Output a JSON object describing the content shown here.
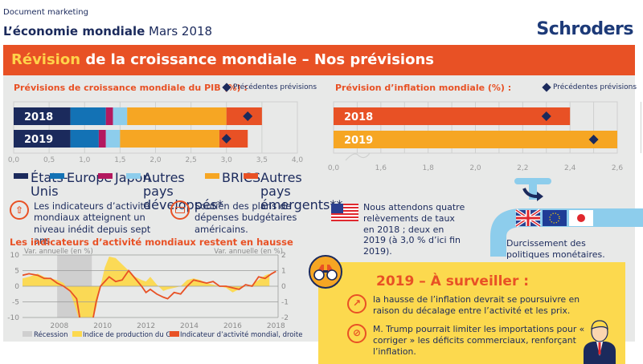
{
  "header": {
    "doc_label": "Document marketing",
    "title_bold": "L’économie mondiale",
    "title_rest": " Mars 2018",
    "logo": "Schroders"
  },
  "banner": {
    "highlight": "Révision",
    "rest": " de la croissance mondiale – Nos prévisions"
  },
  "colors": {
    "orange": "#e85125",
    "navy": "#1b2a5c",
    "yellow": "#fcd94e",
    "gold": "#f6a623",
    "grey_bg": "#e8e9e8"
  },
  "chart_data": [
    {
      "type": "bar",
      "orientation": "horizontal-stacked",
      "title": "Prévisions de croissance mondiale du PIB (%) :",
      "categories": [
        "2018",
        "2019"
      ],
      "series": [
        {
          "name": "États-Unis",
          "color": "#1b2a5c",
          "values": [
            0.8,
            0.8
          ]
        },
        {
          "name": "Europe",
          "color": "#1372b5",
          "values": [
            0.5,
            0.4
          ]
        },
        {
          "name": "Japon",
          "color": "#b3195f",
          "values": [
            0.1,
            0.1
          ]
        },
        {
          "name": "Autres pays développés*",
          "color": "#8dcdec",
          "values": [
            0.2,
            0.2
          ]
        },
        {
          "name": "BRICS",
          "color": "#f6a623",
          "values": [
            1.4,
            1.4
          ]
        },
        {
          "name": "Autres pays émergents**",
          "color": "#e85125",
          "values": [
            0.5,
            0.4
          ]
        }
      ],
      "previous_forecast": {
        "name": "Précédentes prévisions",
        "values": [
          3.3,
          3.0
        ]
      },
      "xlim": [
        0,
        4.0
      ],
      "xticks": [
        "0,0",
        "0,5",
        "1,0",
        "1,5",
        "2,0",
        "2,5",
        "3,0",
        "3,5",
        "4,0"
      ],
      "grid": true,
      "legend": "bottom"
    },
    {
      "type": "bar",
      "orientation": "horizontal",
      "title": "Prévision d’inflation mondiale (%) :",
      "categories": [
        "2018",
        "2019"
      ],
      "values": [
        2.4,
        2.6
      ],
      "colors": [
        "#e85125",
        "#f6a623"
      ],
      "previous_forecast": {
        "name": "Précédentes prévisions",
        "values": [
          2.3,
          2.5
        ]
      },
      "xlim": [
        1.4,
        2.6
      ],
      "axis_break": true,
      "xticks": [
        "0,0",
        "1,6",
        "1,8",
        "2,0",
        "2,2",
        "2,4",
        "2,6"
      ],
      "grid": true
    },
    {
      "type": "line",
      "title": "Les indicateurs d’activité mondiaux restent en hausse",
      "ylabel_left": "Var. annuelle (en %)",
      "ylabel_right": "Var. annuelle (en %)",
      "ylim_left": [
        -10,
        10
      ],
      "ylim_right": [
        -2,
        2
      ],
      "yticks_left": [
        "10",
        "5",
        "0",
        "-5",
        "-10"
      ],
      "yticks_right": [
        "2",
        "1",
        "0",
        "-1",
        "-2"
      ],
      "xlim": [
        2006.3,
        2018.1
      ],
      "xticks": [
        "2008",
        "2010",
        "2012",
        "2014",
        "2016",
        "2018"
      ],
      "recession": [
        2007.9,
        2009.5
      ],
      "series": [
        {
          "name": "Indice de production du G7",
          "type": "area",
          "axis": "left",
          "color": "#fcd94e",
          "x": [
            2006.3,
            2006.6,
            2007.0,
            2007.3,
            2007.6,
            2007.9,
            2008.2,
            2008.5,
            2008.8,
            2009.0,
            2009.2,
            2009.5,
            2009.7,
            2009.9,
            2010.1,
            2010.3,
            2010.6,
            2010.9,
            2011.2,
            2011.5,
            2011.8,
            2012.0,
            2012.2,
            2012.5,
            2012.8,
            2013.0,
            2013.3,
            2013.6,
            2013.9,
            2014.2,
            2014.5,
            2014.8,
            2015.1,
            2015.4,
            2015.7,
            2016.0,
            2016.3,
            2016.6,
            2016.9,
            2017.2,
            2017.5,
            2017.7
          ],
          "values": [
            2.5,
            3.0,
            4.0,
            3.0,
            2.5,
            2.0,
            1.0,
            -2.0,
            -8.0,
            -13.0,
            -15.0,
            -12.0,
            -7.0,
            0.0,
            6.0,
            9.5,
            9.0,
            7.0,
            5.0,
            3.0,
            2.0,
            1.5,
            3.0,
            0.5,
            -1.5,
            -1.0,
            -0.5,
            0.0,
            2.0,
            2.5,
            2.0,
            1.0,
            0.5,
            0.0,
            -0.5,
            -2.0,
            -1.0,
            0.0,
            0.5,
            2.0,
            3.5,
            4.0
          ]
        },
        {
          "name": "Indicateur d’activité mondial, droite",
          "type": "line",
          "axis": "right",
          "color": "#e85125",
          "x": [
            2006.3,
            2006.6,
            2007.0,
            2007.3,
            2007.6,
            2007.9,
            2008.2,
            2008.5,
            2008.8,
            2009.0,
            2009.2,
            2009.5,
            2009.7,
            2009.9,
            2010.1,
            2010.3,
            2010.6,
            2010.9,
            2011.2,
            2011.5,
            2011.8,
            2012.0,
            2012.2,
            2012.5,
            2012.8,
            2013.0,
            2013.3,
            2013.6,
            2013.9,
            2014.2,
            2014.5,
            2014.8,
            2015.1,
            2015.4,
            2015.7,
            2016.0,
            2016.3,
            2016.6,
            2016.9,
            2017.2,
            2017.5,
            2017.8,
            2018.0
          ],
          "values": [
            0.7,
            0.8,
            0.7,
            0.5,
            0.5,
            0.2,
            0.0,
            -0.3,
            -0.8,
            -2.5,
            -3.0,
            -2.5,
            -1.0,
            0.0,
            0.3,
            0.6,
            0.3,
            0.4,
            1.0,
            0.5,
            0.0,
            -0.4,
            -0.2,
            -0.5,
            -0.7,
            -0.8,
            -0.4,
            -0.5,
            0.0,
            0.4,
            0.3,
            0.2,
            0.3,
            0.0,
            0.0,
            -0.1,
            -0.2,
            0.1,
            0.0,
            0.6,
            0.5,
            0.8,
            0.95
          ]
        }
      ],
      "legend_items": [
        "Récession",
        "Indice de production du G7",
        "Indicateur d’activité mondial, droite"
      ],
      "legend": "bottom"
    }
  ],
  "gdp_legend": [
    {
      "label": "États-Unis"
    },
    {
      "label": "Europe"
    },
    {
      "label": "Japon"
    },
    {
      "label": "Autres pays développés*"
    },
    {
      "label": "BRICS"
    },
    {
      "label": "Autres pays émergents**"
    }
  ],
  "prev_label": "Précédentes prévisions",
  "bullets": {
    "activity": "Les indicateurs d’activité mondiaux atteignent un niveau inédit depuis sept ans.",
    "budget": "Soutien des plans de dépenses budgétaires américains.",
    "rates": "Nous attendons quatre relèvements de taux en 2018 ; deux en 2019 (à 3,0 % d’ici fin 2019).",
    "tap": "Durcissement des politiques monétaires."
  },
  "watch": {
    "title": "2019 – À surveiller :",
    "item1": "la hausse de l’inflation devrait se poursuivre en raison du décalage entre l’activité et les prix.",
    "item2": "M. Trump pourrait limiter les importations pour « corriger » les déficits commerciaux, renforçant l’inflation."
  }
}
